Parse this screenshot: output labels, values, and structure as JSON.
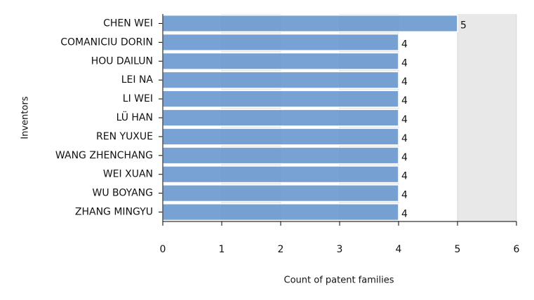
{
  "chart_data": {
    "type": "bar",
    "orientation": "horizontal",
    "y_label": "Inventors",
    "x_label": "Count of patent families",
    "categories": [
      "CHEN WEI",
      "COMANICIU DORIN",
      "HOU DAILUN",
      "LEI NA",
      "LI WEI",
      "LÜ HAN",
      "REN YUXUE",
      "WANG ZHENCHANG",
      "WEI XUAN",
      "WU BOYANG",
      "ZHANG MINGYU"
    ],
    "values": [
      5,
      4,
      4,
      4,
      4,
      4,
      4,
      4,
      4,
      4,
      4
    ],
    "color": "#6a98cf",
    "xlim": [
      0,
      6
    ],
    "xticks": [
      0,
      1,
      2,
      3,
      4,
      5,
      6
    ],
    "grid": true
  }
}
